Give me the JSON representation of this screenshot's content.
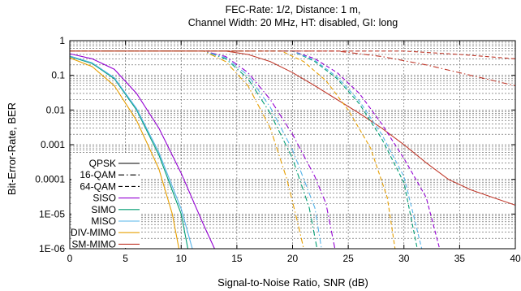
{
  "chart_data": {
    "type": "line",
    "title_lines": [
      "FEC-Rate: 1/2, Distance: 1 m,",
      "Channel Width: 20 MHz, HT: disabled, GI: long"
    ],
    "xlabel": "Signal-to-Noise Ratio, SNR (dB)",
    "ylabel": "Bit-Error-Rate, BER",
    "xlim": [
      0,
      40
    ],
    "ylim": [
      1e-06,
      1
    ],
    "yscale": "log",
    "grid": true,
    "legend_position": "left-bottom",
    "x_ticks": [
      {
        "v": 0,
        "label": "0"
      },
      {
        "v": 5,
        "label": "5"
      },
      {
        "v": 10,
        "label": "10"
      },
      {
        "v": 15,
        "label": "15"
      },
      {
        "v": 20,
        "label": "20"
      },
      {
        "v": 25,
        "label": "25"
      },
      {
        "v": 30,
        "label": "30"
      },
      {
        "v": 35,
        "label": "35"
      },
      {
        "v": 40,
        "label": "40"
      }
    ],
    "y_ticks": [
      {
        "v": 1,
        "label": "1"
      },
      {
        "v": 0.1,
        "label": "0.1"
      },
      {
        "v": 0.01,
        "label": "0.01"
      },
      {
        "v": 0.001,
        "label": "0.001"
      },
      {
        "v": 0.0001,
        "label": "0.0001"
      },
      {
        "v": 1e-05,
        "label": "1E-05"
      },
      {
        "v": 1e-06,
        "label": "1E-06"
      }
    ],
    "legend": {
      "modulation": [
        {
          "label": "QPSK",
          "dash": "solid"
        },
        {
          "label": "16-QAM",
          "dash": "dashdot"
        },
        {
          "label": "64-QAM",
          "dash": "dashed"
        }
      ],
      "schemes": [
        {
          "label": "SISO",
          "color": "#9400d3"
        },
        {
          "label": "SIMO",
          "color": "#009e73"
        },
        {
          "label": "MISO",
          "color": "#56b4e9"
        },
        {
          "label": "DIV-MIMO",
          "color": "#e69f00"
        },
        {
          "label": "SM-MIMO",
          "color": "#c0392b"
        }
      ]
    },
    "series": [
      {
        "scheme": "SISO",
        "modulation": "QPSK",
        "color": "#9400d3",
        "dash": "solid",
        "points": [
          [
            0,
            0.42
          ],
          [
            2,
            0.3
          ],
          [
            4,
            0.15
          ],
          [
            6,
            0.03
          ],
          [
            8,
            0.003
          ],
          [
            10,
            0.00015
          ],
          [
            12,
            5e-06
          ],
          [
            13,
            1e-06
          ]
        ]
      },
      {
        "scheme": "SIMO",
        "modulation": "QPSK",
        "color": "#009e73",
        "dash": "solid",
        "points": [
          [
            0,
            0.35
          ],
          [
            2,
            0.22
          ],
          [
            4,
            0.08
          ],
          [
            6,
            0.01
          ],
          [
            8,
            0.0005
          ],
          [
            10,
            1e-05
          ],
          [
            10.6,
            1e-06
          ]
        ]
      },
      {
        "scheme": "MISO",
        "modulation": "QPSK",
        "color": "#56b4e9",
        "dash": "solid",
        "points": [
          [
            0,
            0.36
          ],
          [
            2,
            0.23
          ],
          [
            4,
            0.085
          ],
          [
            6,
            0.011
          ],
          [
            8,
            0.0006
          ],
          [
            10,
            1.4e-05
          ],
          [
            11,
            1e-06
          ]
        ]
      },
      {
        "scheme": "DIV-MIMO",
        "modulation": "QPSK",
        "color": "#e69f00",
        "dash": "solid",
        "points": [
          [
            0,
            0.32
          ],
          [
            2,
            0.18
          ],
          [
            4,
            0.05
          ],
          [
            6,
            0.005
          ],
          [
            8,
            0.0002
          ],
          [
            9.2,
            1e-05
          ],
          [
            9.8,
            1e-06
          ]
        ]
      },
      {
        "scheme": "SM-MIMO",
        "modulation": "QPSK",
        "color": "#c0392b",
        "dash": "solid",
        "points": [
          [
            0,
            0.5
          ],
          [
            14,
            0.5
          ],
          [
            16,
            0.4
          ],
          [
            18,
            0.25
          ],
          [
            20,
            0.12
          ],
          [
            22,
            0.05
          ],
          [
            24,
            0.02
          ],
          [
            26,
            0.008
          ],
          [
            28,
            0.003
          ],
          [
            30,
            0.001
          ],
          [
            32,
            0.0003
          ],
          [
            34,
            0.0001
          ],
          [
            36,
            5e-05
          ],
          [
            38,
            3e-05
          ],
          [
            40,
            1.8e-05
          ]
        ]
      },
      {
        "scheme": "SISO",
        "modulation": "16-QAM",
        "color": "#9400d3",
        "dash": "dashdot",
        "points": [
          [
            0,
            0.5
          ],
          [
            12,
            0.5
          ],
          [
            14,
            0.35
          ],
          [
            16,
            0.12
          ],
          [
            18,
            0.02
          ],
          [
            20,
            0.002
          ],
          [
            22,
            0.00012
          ],
          [
            23,
            2e-05
          ],
          [
            23.8,
            1e-06
          ]
        ]
      },
      {
        "scheme": "SIMO",
        "modulation": "16-QAM",
        "color": "#009e73",
        "dash": "dashdot",
        "points": [
          [
            0,
            0.5
          ],
          [
            12,
            0.5
          ],
          [
            14,
            0.3
          ],
          [
            16,
            0.08
          ],
          [
            18,
            0.008
          ],
          [
            20,
            0.0004
          ],
          [
            21.5,
            1.5e-05
          ],
          [
            22.2,
            1e-06
          ]
        ]
      },
      {
        "scheme": "MISO",
        "modulation": "16-QAM",
        "color": "#56b4e9",
        "dash": "dashdot",
        "points": [
          [
            0,
            0.5
          ],
          [
            12,
            0.5
          ],
          [
            14,
            0.32
          ],
          [
            16,
            0.1
          ],
          [
            18,
            0.012
          ],
          [
            20,
            0.0007
          ],
          [
            22,
            1.5e-05
          ],
          [
            22.6,
            1e-06
          ]
        ]
      },
      {
        "scheme": "DIV-MIMO",
        "modulation": "16-QAM",
        "color": "#e69f00",
        "dash": "dashdot",
        "points": [
          [
            0,
            0.5
          ],
          [
            12,
            0.5
          ],
          [
            14,
            0.25
          ],
          [
            16,
            0.05
          ],
          [
            18,
            0.003
          ],
          [
            19.5,
            0.0001
          ],
          [
            20.5,
            5e-06
          ],
          [
            21,
            1e-06
          ]
        ]
      },
      {
        "scheme": "SM-MIMO",
        "modulation": "16-QAM",
        "color": "#c0392b",
        "dash": "dashdot",
        "points": [
          [
            0,
            0.5
          ],
          [
            24,
            0.5
          ],
          [
            28,
            0.35
          ],
          [
            32,
            0.2
          ],
          [
            36,
            0.1
          ],
          [
            40,
            0.05
          ]
        ]
      },
      {
        "scheme": "SISO",
        "modulation": "64-QAM",
        "color": "#9400d3",
        "dash": "dashed",
        "points": [
          [
            0,
            0.5
          ],
          [
            20,
            0.5
          ],
          [
            22,
            0.3
          ],
          [
            24,
            0.12
          ],
          [
            26,
            0.03
          ],
          [
            28,
            0.004
          ],
          [
            30,
            0.0004
          ],
          [
            32,
            3e-05
          ],
          [
            33.2,
            1e-06
          ]
        ]
      },
      {
        "scheme": "SIMO",
        "modulation": "64-QAM",
        "color": "#009e73",
        "dash": "dashed",
        "points": [
          [
            0,
            0.5
          ],
          [
            20,
            0.5
          ],
          [
            22,
            0.25
          ],
          [
            24,
            0.08
          ],
          [
            26,
            0.015
          ],
          [
            28,
            0.0015
          ],
          [
            30,
            8e-05
          ],
          [
            31.2,
            1e-06
          ]
        ]
      },
      {
        "scheme": "MISO",
        "modulation": "64-QAM",
        "color": "#56b4e9",
        "dash": "dashed",
        "points": [
          [
            0,
            0.5
          ],
          [
            20,
            0.5
          ],
          [
            22,
            0.27
          ],
          [
            24,
            0.09
          ],
          [
            26,
            0.018
          ],
          [
            28,
            0.002
          ],
          [
            30,
            0.00012
          ],
          [
            31.6,
            1e-06
          ]
        ]
      },
      {
        "scheme": "DIV-MIMO",
        "modulation": "64-QAM",
        "color": "#e69f00",
        "dash": "dashed",
        "points": [
          [
            0,
            0.5
          ],
          [
            19,
            0.5
          ],
          [
            21,
            0.25
          ],
          [
            23,
            0.07
          ],
          [
            25,
            0.01
          ],
          [
            27,
            0.0008
          ],
          [
            28.5,
            3e-05
          ],
          [
            29.2,
            1e-06
          ]
        ]
      },
      {
        "scheme": "SM-MIMO",
        "modulation": "64-QAM",
        "color": "#c0392b",
        "dash": "dashed",
        "points": [
          [
            0,
            0.5
          ],
          [
            30,
            0.5
          ],
          [
            35,
            0.4
          ],
          [
            40,
            0.3
          ]
        ]
      }
    ]
  }
}
